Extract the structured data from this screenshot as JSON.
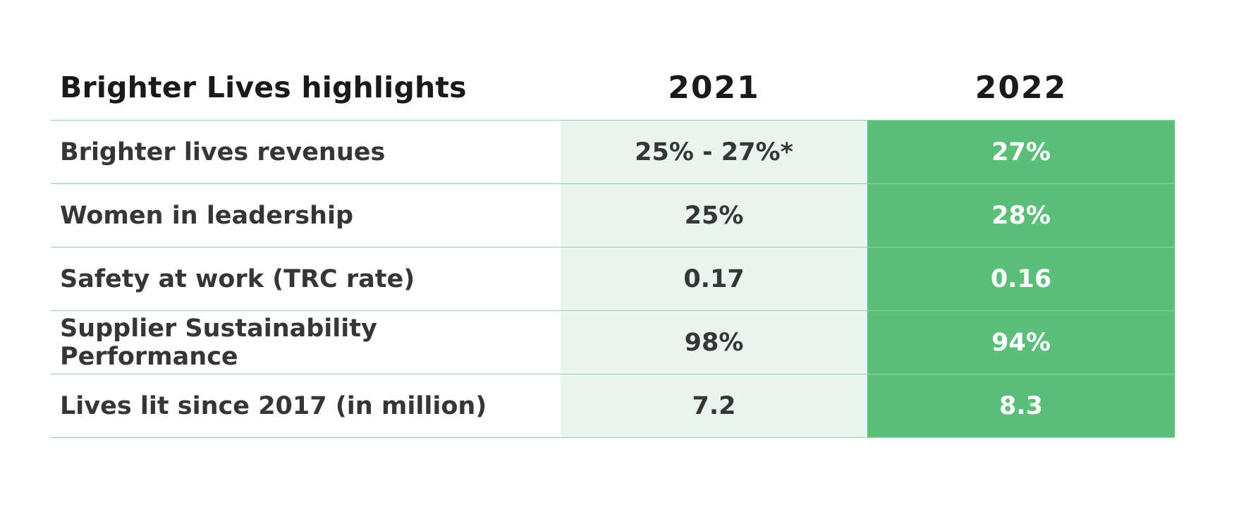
{
  "chart_data": {
    "type": "table",
    "title": "Brighter Lives highlights",
    "columns": [
      "2021",
      "2022"
    ],
    "rows": [
      {
        "label": "Brighter lives revenues",
        "values": [
          "25% - 27%*",
          "27%"
        ]
      },
      {
        "label": "Women in leadership",
        "values": [
          "25%",
          "28%"
        ]
      },
      {
        "label": "Safety at work (TRC rate)",
        "values": [
          "0.17",
          "0.16"
        ]
      },
      {
        "label": "Supplier Sustainability Performance",
        "values": [
          "98%",
          "94%"
        ]
      },
      {
        "label": "Lives lit since 2017 (in million)",
        "values": [
          "7.2",
          "8.3"
        ]
      }
    ]
  },
  "colors": {
    "accent_green": "#5bbe79",
    "light_green": "#e8f4ee",
    "divider": "#8fd3a4"
  }
}
